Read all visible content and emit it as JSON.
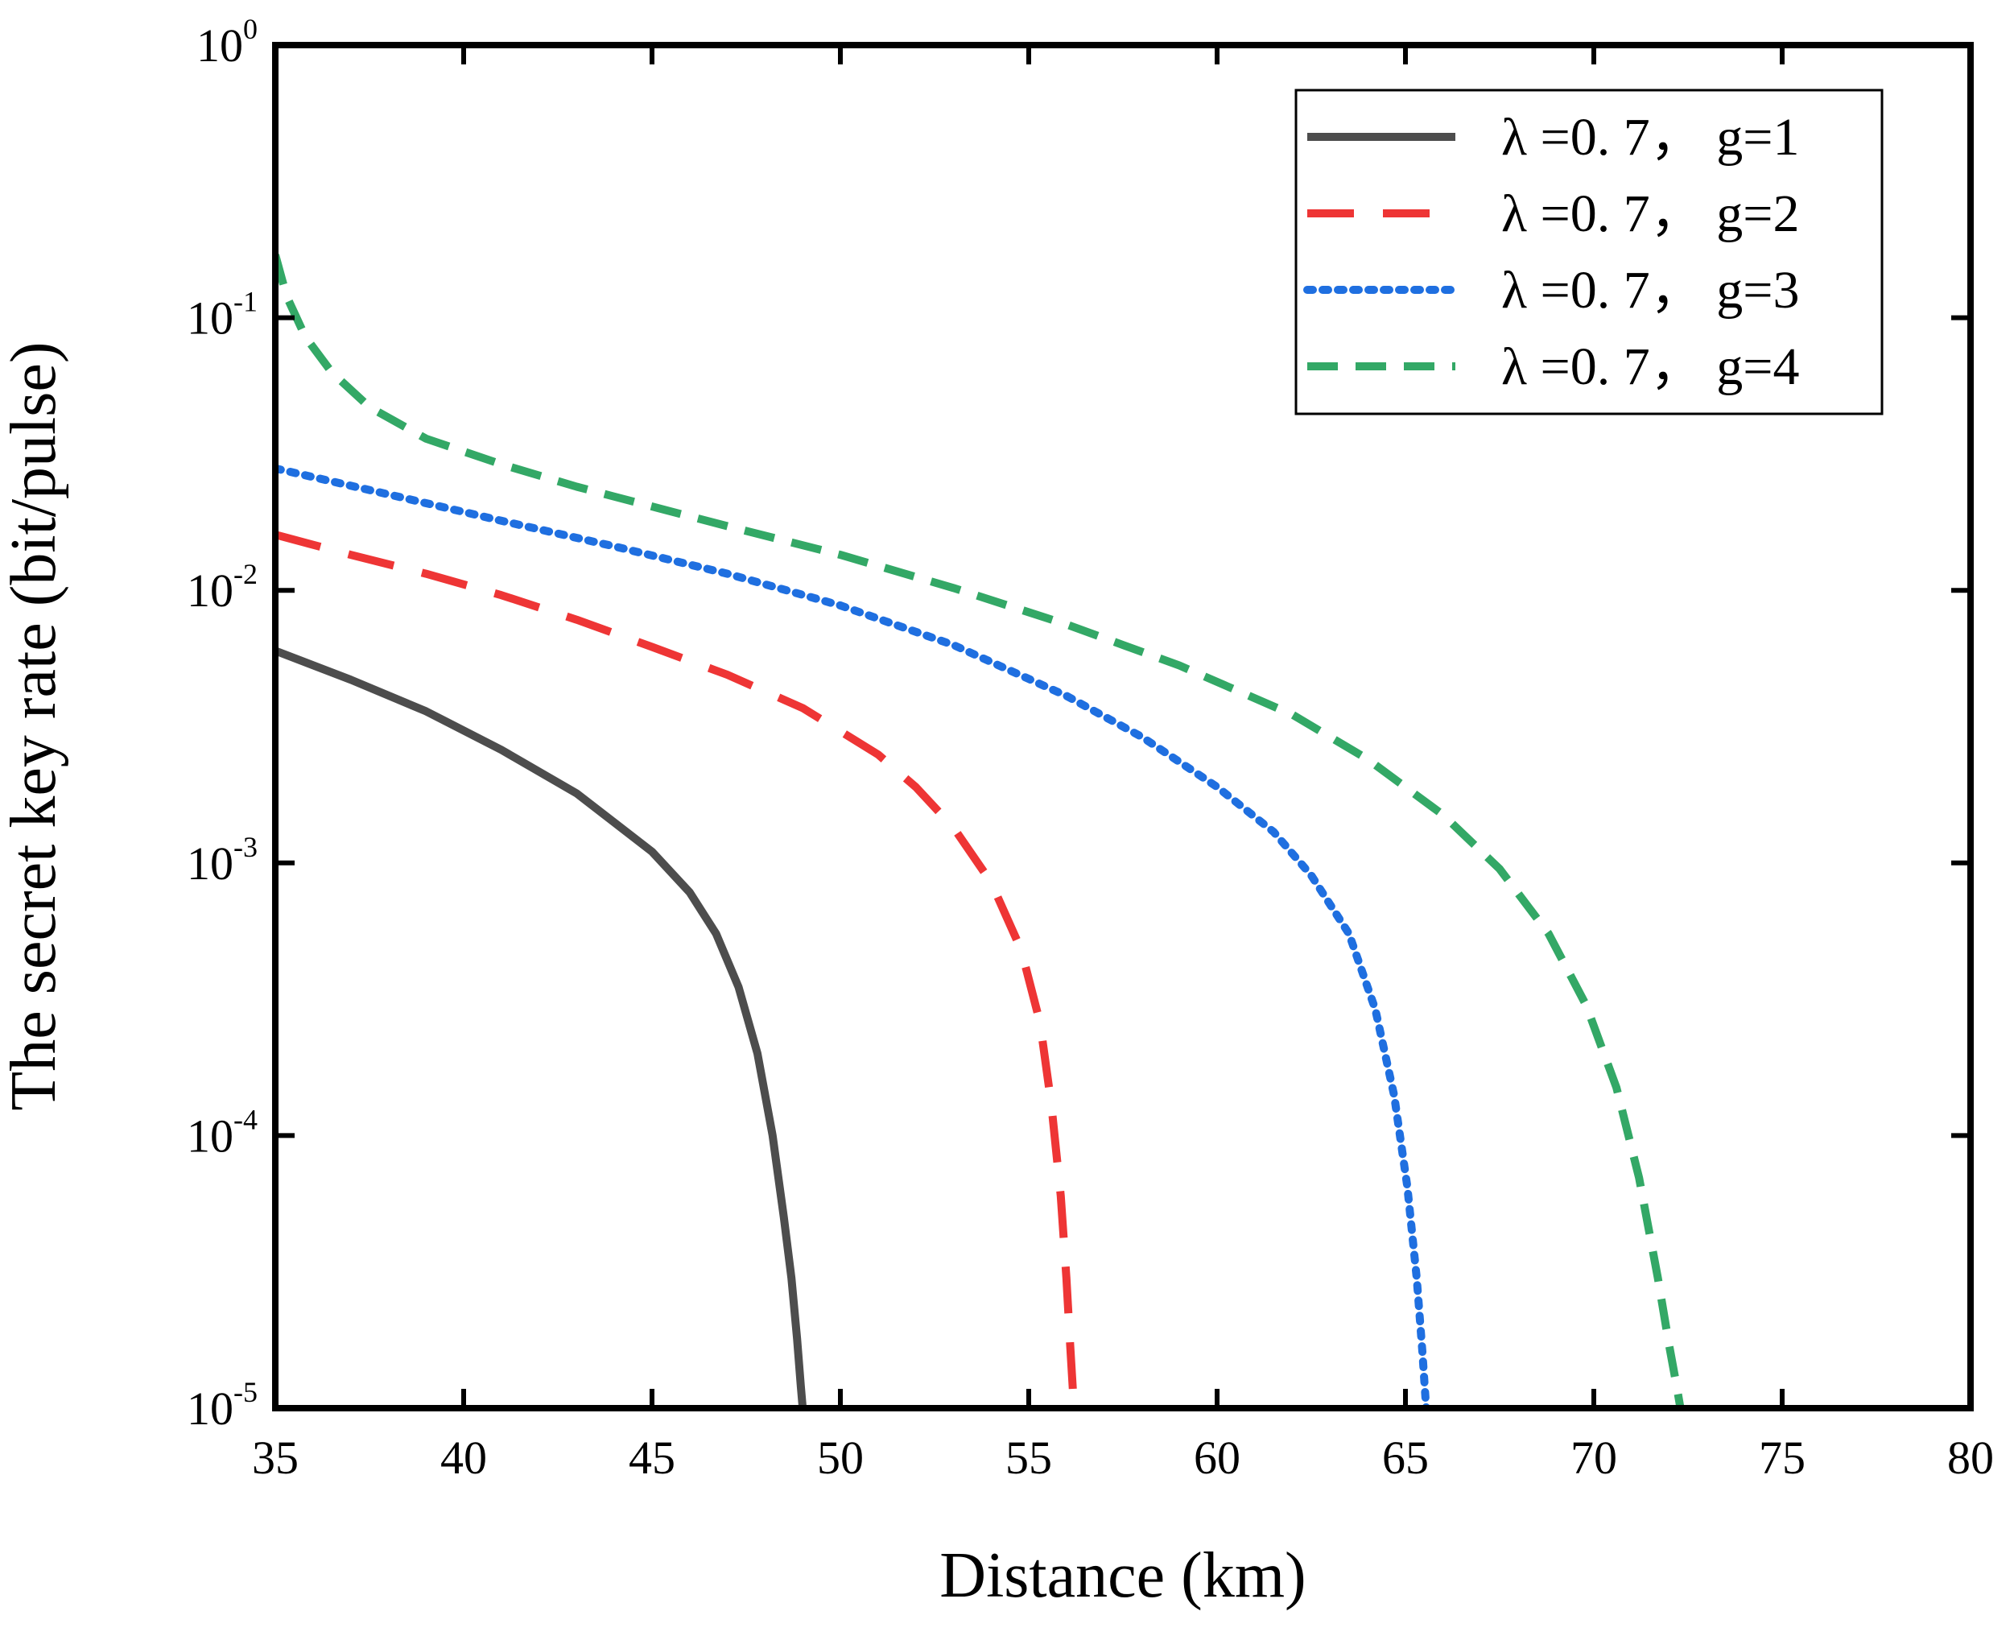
{
  "chart_data": {
    "type": "line",
    "title": "",
    "xlabel": "Distance (km)",
    "ylabel": "The secret key rate (bit/pulse)",
    "yscale": "log",
    "xlim": [
      35,
      80
    ],
    "ylim": [
      1e-05,
      1
    ],
    "x_ticks": [
      35,
      40,
      45,
      50,
      55,
      60,
      65,
      70,
      75,
      80
    ],
    "x_tick_labels": [
      "35",
      "40",
      "45",
      "50",
      "55",
      "60",
      "65",
      "70",
      "75",
      "80"
    ],
    "y_ticks": [
      0,
      -1,
      -2,
      -3,
      -4,
      -5
    ],
    "y_tick_labels": [
      {
        "base": "10",
        "exp": "0"
      },
      {
        "base": "10",
        "exp": "-1"
      },
      {
        "base": "10",
        "exp": "-2"
      },
      {
        "base": "10",
        "exp": "-3"
      },
      {
        "base": "10",
        "exp": "-4"
      },
      {
        "base": "10",
        "exp": "-5"
      }
    ],
    "legend_position": "top-right",
    "grid": false,
    "series": [
      {
        "name": "λ =0. 7， g=1",
        "color": "#4d4d4d",
        "style": "solid",
        "x": [
          35,
          37,
          39,
          41,
          43,
          45,
          46,
          46.7,
          47.3,
          47.8,
          48.2,
          48.5,
          48.7,
          48.85,
          48.95,
          49.0
        ],
        "y": [
          0.006,
          0.0047,
          0.0036,
          0.0026,
          0.0018,
          0.0011,
          0.00078,
          0.00055,
          0.00035,
          0.0002,
          0.0001,
          5e-05,
          3e-05,
          1.8e-05,
          1.2e-05,
          1e-05
        ]
      },
      {
        "name": "λ =0. 7， g=2",
        "color": "#ee3535",
        "style": "dashed",
        "x": [
          35,
          37,
          39,
          41,
          43,
          45,
          47,
          49,
          51,
          52,
          53,
          54,
          54.8,
          55.3,
          55.6,
          55.85,
          56.0,
          56.1,
          56.2
        ],
        "y": [
          0.016,
          0.0135,
          0.0115,
          0.0096,
          0.0078,
          0.0062,
          0.0049,
          0.0037,
          0.0025,
          0.0019,
          0.00135,
          0.00085,
          0.00048,
          0.00026,
          0.00013,
          6e-05,
          3e-05,
          1.7e-05,
          1e-05
        ]
      },
      {
        "name": "λ =0. 7， g=3",
        "color": "#1f6fe0",
        "style": "dotted",
        "x": [
          35,
          38,
          41,
          44,
          47,
          50,
          53,
          56,
          58,
          60,
          61.5,
          62.5,
          63.5,
          64.2,
          64.7,
          65.05,
          65.3,
          65.45,
          65.55
        ],
        "y": [
          0.028,
          0.0225,
          0.018,
          0.0145,
          0.0115,
          0.0088,
          0.0063,
          0.0041,
          0.0029,
          0.0019,
          0.0013,
          0.0009,
          0.00055,
          0.00029,
          0.00014,
          6.5e-05,
          3e-05,
          1.6e-05,
          1e-05
        ]
      },
      {
        "name": "λ =0. 7， g=4",
        "color": "#33a866",
        "style": "dashed",
        "x": [
          35,
          35.3,
          35.8,
          36.5,
          37.5,
          39,
          41,
          43,
          45,
          47,
          50,
          53,
          56,
          59,
          62,
          64,
          66,
          67.5,
          68.8,
          69.8,
          70.6,
          71.2,
          71.7,
          72.0,
          72.2,
          72.3
        ],
        "y": [
          0.17,
          0.12,
          0.085,
          0.063,
          0.047,
          0.036,
          0.029,
          0.024,
          0.0203,
          0.0172,
          0.0135,
          0.0102,
          0.0075,
          0.0053,
          0.0035,
          0.0024,
          0.0015,
          0.00095,
          0.00055,
          0.0003,
          0.00015,
          7e-05,
          3e-05,
          1.7e-05,
          1.2e-05,
          1e-05
        ]
      }
    ]
  }
}
